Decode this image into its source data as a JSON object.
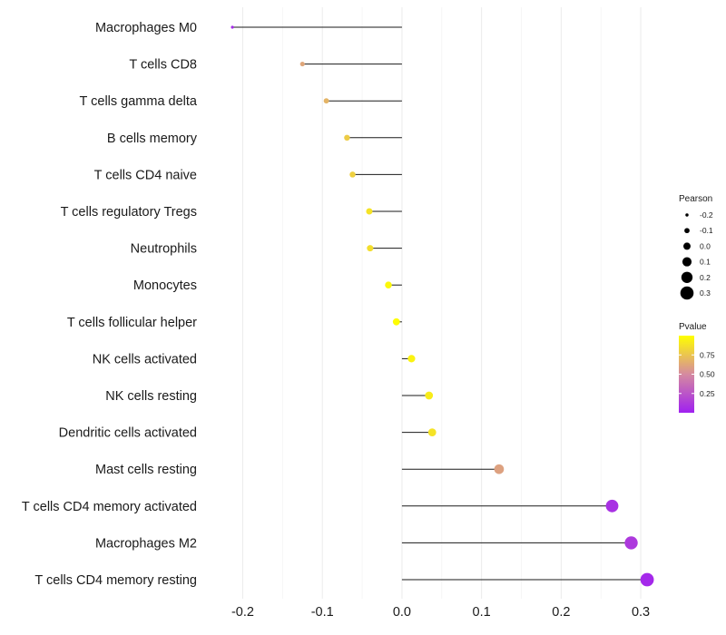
{
  "chart_data": {
    "type": "lollipop",
    "title": "",
    "xlabel": "",
    "ylabel": "",
    "xlim": [
      -0.245,
      0.325
    ],
    "xticks": [
      -0.2,
      -0.1,
      0.0,
      0.1,
      0.2,
      0.3
    ],
    "xtick_labels": [
      "-0.2",
      "-0.1",
      "0.0",
      "0.1",
      "0.2",
      "0.3"
    ],
    "categories": [
      "Macrophages M0",
      "T cells CD8",
      "T cells gamma delta",
      "B cells memory",
      "T cells CD4 naive",
      "T cells regulatory  Tregs ",
      "Neutrophils",
      "Monocytes",
      "T cells follicular helper",
      "NK cells activated",
      "NK cells resting",
      "Dendritic cells activated",
      "Mast cells resting",
      "T cells CD4 memory activated",
      "Macrophages M2",
      "T cells CD4 memory resting"
    ],
    "values": [
      -0.213,
      -0.125,
      -0.095,
      -0.069,
      -0.062,
      -0.041,
      -0.04,
      -0.017,
      -0.007,
      0.012,
      0.034,
      0.038,
      0.122,
      0.264,
      0.288,
      0.308
    ],
    "pvalues": [
      0.05,
      0.62,
      0.68,
      0.78,
      0.8,
      0.88,
      0.86,
      0.97,
      0.99,
      0.95,
      0.92,
      0.88,
      0.6,
      0.08,
      0.12,
      0.04
    ],
    "legend_size": {
      "title": "Pearson",
      "values": [
        -0.2,
        -0.1,
        0.0,
        0.1,
        0.2,
        0.3
      ],
      "labels": [
        "-0.2",
        "-0.1",
        "0.0",
        "0.1",
        "0.2",
        "0.3"
      ]
    },
    "legend_color": {
      "title": "Pvalue",
      "ticks": [
        0.25,
        0.5,
        0.75
      ],
      "tick_labels": [
        "0.25",
        "0.50",
        "0.75"
      ],
      "range": [
        0.0,
        1.0
      ],
      "low_color": "#a020f0",
      "high_color": "#ffff00"
    },
    "grid": true,
    "legend_position": "right"
  }
}
